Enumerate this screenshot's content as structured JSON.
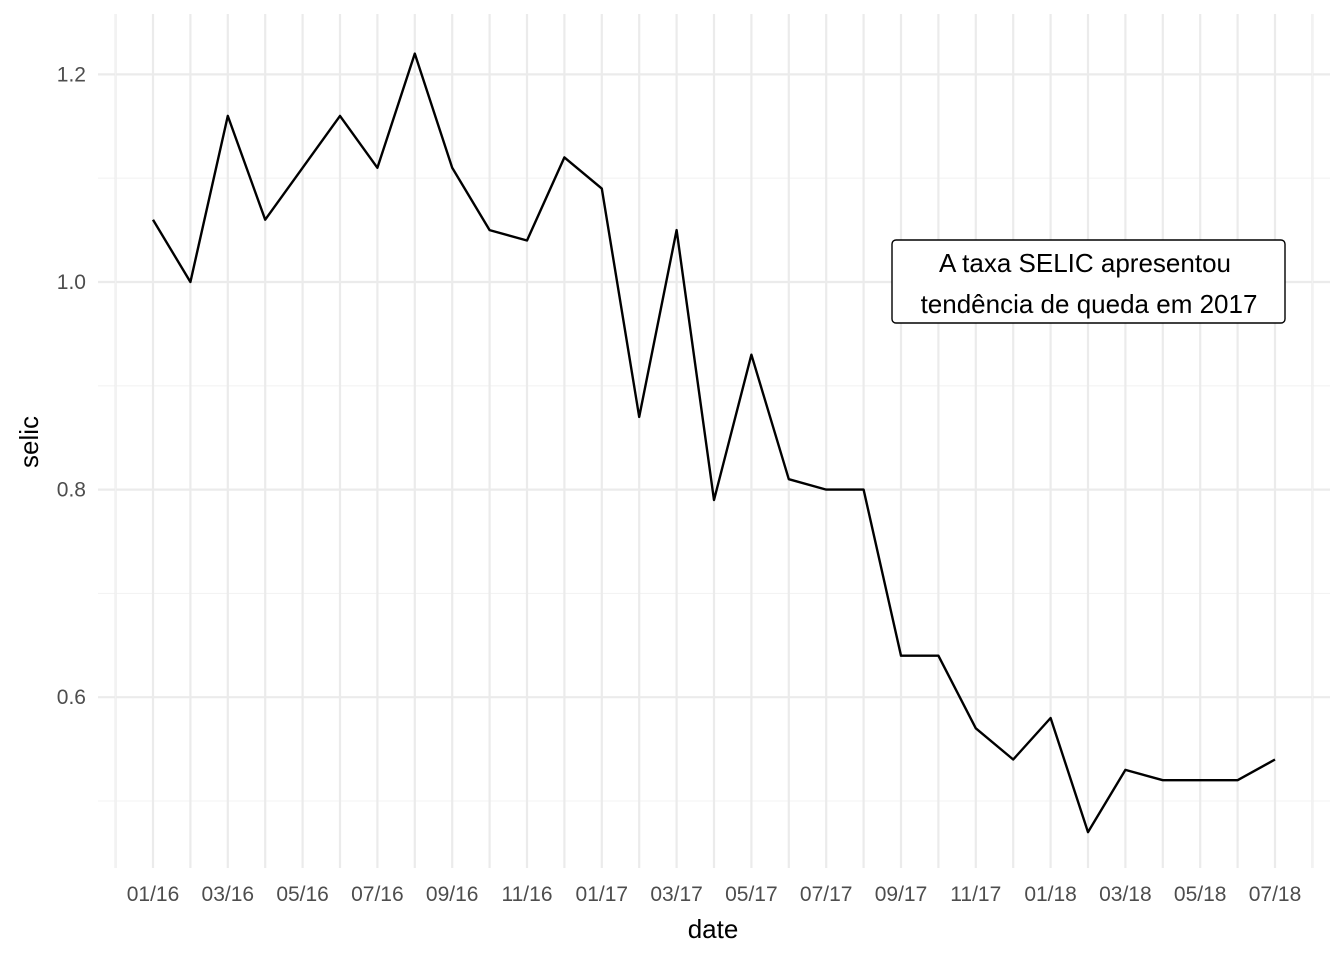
{
  "chart_data": {
    "type": "line",
    "title": "",
    "xlabel": "date",
    "ylabel": "selic",
    "ylim": [
      0.45,
      1.25
    ],
    "y_ticks": [
      0.6,
      0.8,
      1.0,
      1.2
    ],
    "y_tick_labels": [
      "0.6",
      "0.8",
      "1.0",
      "1.2"
    ],
    "x_tick_labels": [
      "01/16",
      "03/16",
      "05/16",
      "07/16",
      "09/16",
      "11/16",
      "01/17",
      "03/17",
      "05/17",
      "07/17",
      "09/17",
      "11/17",
      "01/18",
      "03/18",
      "05/18",
      "07/18"
    ],
    "grid": true,
    "series": [
      {
        "x": [
          "2016-01",
          "2016-02",
          "2016-03",
          "2016-04",
          "2016-05",
          "2016-06",
          "2016-07",
          "2016-08",
          "2016-09",
          "2016-10",
          "2016-11",
          "2016-12",
          "2017-01",
          "2017-02",
          "2017-03",
          "2017-04",
          "2017-05",
          "2017-06",
          "2017-07",
          "2017-08",
          "2017-09",
          "2017-10",
          "2017-11",
          "2017-12",
          "2018-01",
          "2018-02",
          "2018-03",
          "2018-04",
          "2018-05",
          "2018-06",
          "2018-07"
        ],
        "values": [
          1.06,
          1.0,
          1.16,
          1.06,
          1.11,
          1.16,
          1.11,
          1.22,
          1.11,
          1.05,
          1.04,
          1.12,
          1.09,
          0.87,
          1.05,
          0.79,
          0.93,
          0.81,
          0.8,
          0.8,
          0.64,
          0.64,
          0.57,
          0.54,
          0.58,
          0.47,
          0.53,
          0.52,
          0.52,
          0.52,
          0.54
        ]
      }
    ],
    "annotations": [
      {
        "lines": [
          "A taxa SELIC apresentou",
          "tendência de queda em 2017"
        ]
      }
    ]
  }
}
